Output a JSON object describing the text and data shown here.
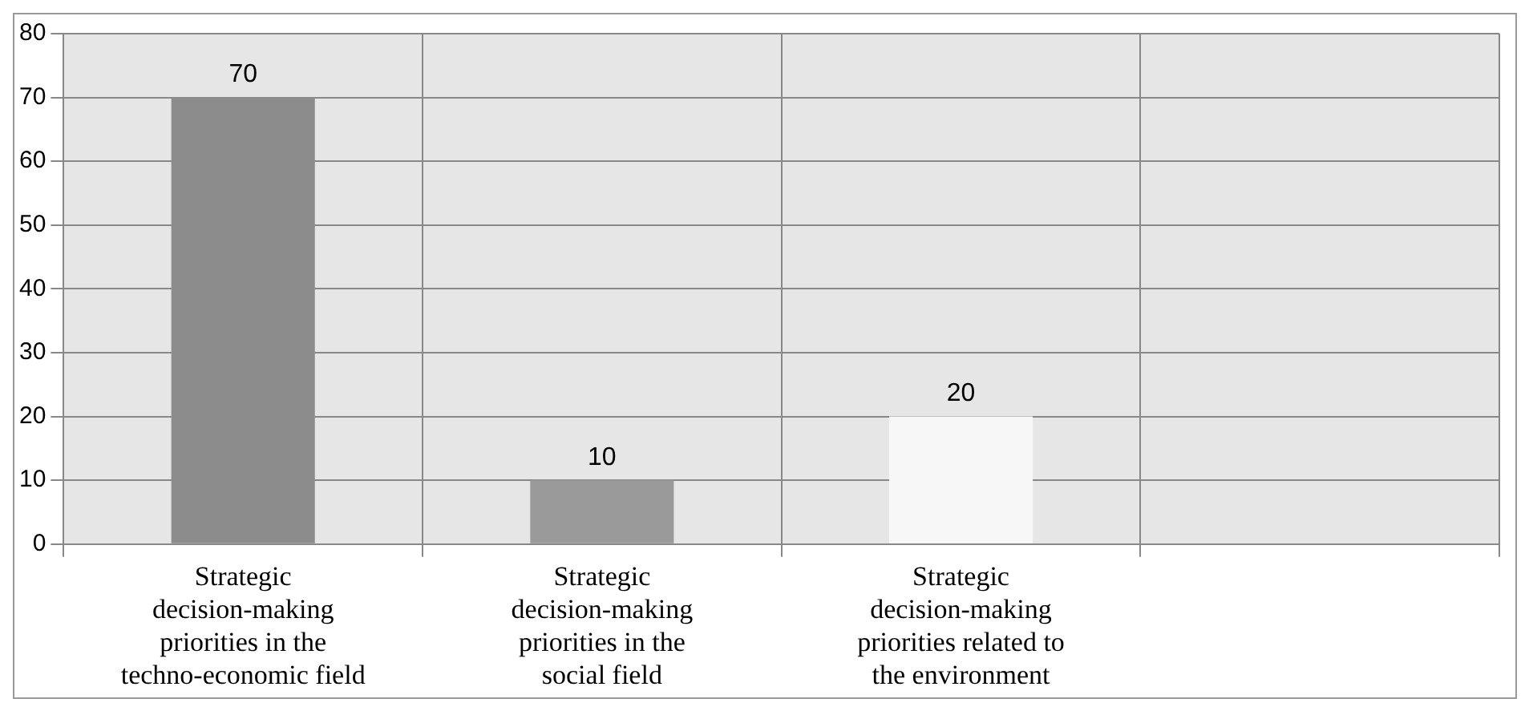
{
  "chart_data": {
    "type": "bar",
    "categories": [
      "Strategic decision-making priorities in the techno-economic field",
      "Strategic decision-making priorities in the social field",
      "Strategic decision-making priorities related to the environment",
      null
    ],
    "values": [
      70,
      10,
      20,
      null
    ],
    "colors": [
      "#8c8c8c",
      "#9a9a9a",
      "#f7f7f7",
      "#cccccc"
    ],
    "ylim": [
      0,
      80
    ],
    "yticks": [
      0,
      10,
      20,
      30,
      40,
      50,
      60,
      70,
      80
    ],
    "grid": true,
    "data_labels": true,
    "legend": false
  }
}
